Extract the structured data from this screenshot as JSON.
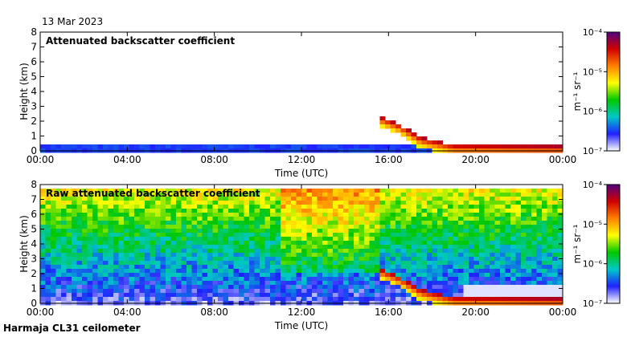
{
  "date_label": "13 Mar 2023",
  "footer_label": "Harmaja CL31 ceilometer",
  "colorscale": {
    "stops": [
      "#ffffff",
      "#2020ff",
      "#00c8c8",
      "#00c800",
      "#ffff00",
      "#ff8000",
      "#d00000",
      "#500080"
    ],
    "scale": "log"
  },
  "chart_data": [
    {
      "type": "heatmap",
      "title": "Attenuated backscatter coefficient",
      "xlabel": "Time (UTC)",
      "ylabel": "Height (km)",
      "x_ticks": [
        "00:00",
        "04:00",
        "08:00",
        "12:00",
        "16:00",
        "20:00",
        "00:00"
      ],
      "xlim_hours": [
        0,
        24
      ],
      "y_ticks": [
        "0",
        "1",
        "2",
        "3",
        "4",
        "5",
        "6",
        "7",
        "8"
      ],
      "ylim": [
        0,
        8
      ],
      "colorbar": {
        "label": "m⁻¹ sr⁻¹",
        "tick_labels": [
          "10⁻⁴",
          "10⁻⁵",
          "10⁻⁶",
          "10⁻⁷"
        ],
        "range": [
          1e-07,
          0.0001
        ]
      },
      "features": {
        "low_layer_top_km": 0.5,
        "descending_layer": [
          {
            "hour": 15.5,
            "height_km": 2.4
          },
          {
            "hour": 16.5,
            "height_km": 1.8
          },
          {
            "hour": 17.5,
            "height_km": 0.9
          },
          {
            "hour": 19.0,
            "height_km": 0.4
          },
          {
            "hour": 24.0,
            "height_km": 0.3
          }
        ]
      }
    },
    {
      "type": "heatmap",
      "title": "Raw attenuated backscatter coefficient",
      "xlabel": "Time (UTC)",
      "ylabel": "Height (km)",
      "x_ticks": [
        "00:00",
        "04:00",
        "08:00",
        "12:00",
        "16:00",
        "20:00",
        "00:00"
      ],
      "xlim_hours": [
        0,
        24
      ],
      "y_ticks": [
        "0",
        "1",
        "2",
        "3",
        "4",
        "5",
        "6",
        "7",
        "8"
      ],
      "ylim": [
        0,
        8
      ],
      "colorbar": {
        "label": "m⁻¹ sr⁻¹",
        "tick_labels": [
          "10⁻⁴",
          "10⁻⁵",
          "10⁻⁶",
          "10⁻⁷"
        ],
        "range": [
          1e-07,
          0.0001
        ]
      },
      "features": {
        "noise_increases_with_height": true,
        "enhanced_region_hours": [
          11,
          15.5
        ],
        "descending_layer": [
          {
            "hour": 15.5,
            "height_km": 2.4
          },
          {
            "hour": 16.5,
            "height_km": 1.8
          },
          {
            "hour": 17.5,
            "height_km": 0.9
          },
          {
            "hour": 19.0,
            "height_km": 0.4
          },
          {
            "hour": 24.0,
            "height_km": 0.3
          }
        ]
      }
    }
  ]
}
